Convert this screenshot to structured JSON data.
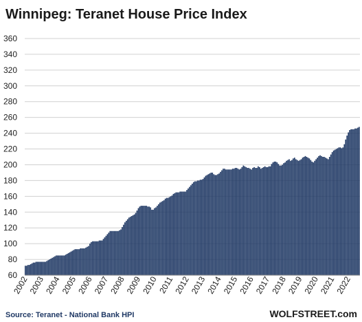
{
  "chart_data": {
    "type": "bar",
    "title": "Winnipeg: Teranet House Price Index",
    "ylim": [
      60,
      360
    ],
    "yticks": [
      60,
      80,
      100,
      120,
      140,
      160,
      180,
      200,
      220,
      240,
      260,
      280,
      300,
      320,
      340,
      360
    ],
    "xticks": [
      "2002",
      "2003",
      "2004",
      "2005",
      "2006",
      "2007",
      "2008",
      "2009",
      "2010",
      "2011",
      "2012",
      "2013",
      "2014",
      "2015",
      "2016",
      "2017",
      "2018",
      "2019",
      "2020",
      "2021",
      "2022"
    ],
    "grid": true,
    "legend": "none",
    "bar_color": "#1f3864",
    "series": [
      {
        "x_start": "2002-01",
        "frequency": "monthly",
        "values": [
          72,
          72,
          73,
          73,
          74,
          75,
          76,
          76,
          77,
          77,
          77,
          77,
          77,
          77,
          77,
          77,
          78,
          79,
          80,
          81,
          82,
          83,
          84,
          85,
          85,
          85,
          85,
          85,
          85,
          85,
          86,
          87,
          88,
          89,
          90,
          91,
          92,
          93,
          93,
          93,
          93,
          94,
          94,
          94,
          94,
          95,
          96,
          97,
          100,
          102,
          103,
          103,
          103,
          103,
          103,
          104,
          104,
          104,
          106,
          108,
          110,
          112,
          114,
          116,
          116,
          116,
          116,
          116,
          116,
          116,
          117,
          118,
          121,
          124,
          127,
          129,
          131,
          133,
          134,
          135,
          136,
          137,
          139,
          142,
          145,
          147,
          148,
          148,
          148,
          148,
          148,
          147,
          147,
          146,
          143,
          143,
          145,
          146,
          148,
          150,
          152,
          153,
          154,
          155,
          157,
          158,
          158,
          159,
          160,
          161,
          163,
          164,
          165,
          165,
          165,
          166,
          166,
          166,
          166,
          166,
          168,
          170,
          172,
          174,
          176,
          178,
          179,
          179,
          180,
          180,
          181,
          181,
          182,
          184,
          186,
          187,
          188,
          189,
          190,
          190,
          188,
          187,
          187,
          188,
          189,
          191,
          193,
          195,
          195,
          194,
          194,
          194,
          194,
          194,
          195,
          195,
          196,
          196,
          195,
          194,
          195,
          197,
          199,
          198,
          197,
          196,
          196,
          195,
          194,
          196,
          197,
          196,
          196,
          198,
          197,
          195,
          196,
          197,
          198,
          197,
          197,
          198,
          198,
          201,
          203,
          204,
          204,
          203,
          201,
          199,
          199,
          200,
          202,
          203,
          205,
          206,
          207,
          205,
          206,
          208,
          209,
          207,
          206,
          205,
          206,
          207,
          209,
          210,
          211,
          210,
          209,
          208,
          206,
          204,
          203,
          205,
          207,
          209,
          211,
          212,
          211,
          210,
          210,
          209,
          208,
          207,
          210,
          213,
          216,
          218,
          219,
          220,
          221,
          222,
          222,
          221,
          222,
          226,
          232,
          237,
          241,
          244,
          245,
          245,
          245,
          246,
          246,
          247,
          248
        ]
      }
    ],
    "source": "Source: Teranet - National Bank HPI",
    "brand": "WOLFSTREET.com"
  }
}
